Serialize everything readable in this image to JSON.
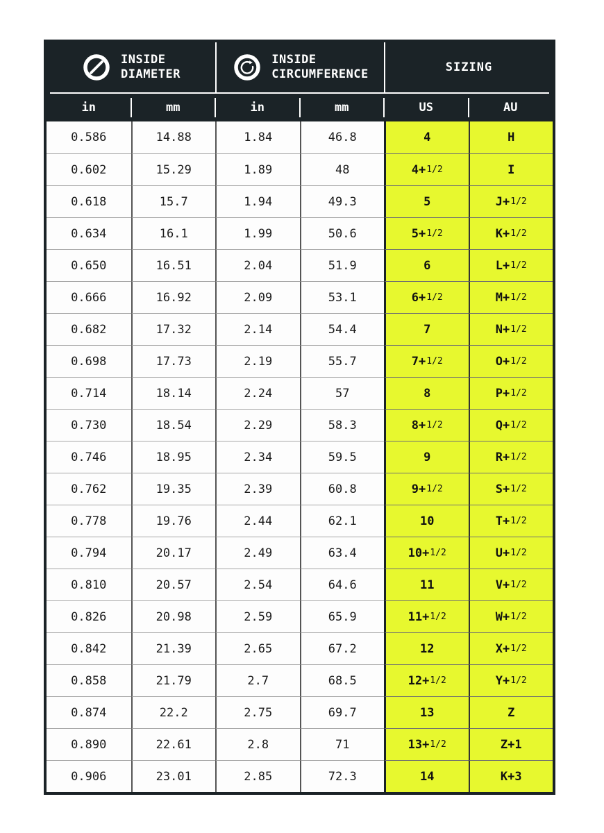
{
  "header": {
    "groups": [
      {
        "icon": "diameter-icon",
        "line1": "INSIDE",
        "line2": "DIAMETER"
      },
      {
        "icon": "circumference-icon",
        "line1": "INSIDE",
        "line2": "CIRCUMFERENCE"
      },
      {
        "label": "SIZING"
      }
    ],
    "units": [
      "in",
      "mm",
      "in",
      "mm",
      "US",
      "AU"
    ]
  },
  "chart_data": {
    "type": "table",
    "column_groups": [
      {
        "label": "INSIDE DIAMETER",
        "icon": "diameter-icon",
        "columns": [
          "in",
          "mm"
        ]
      },
      {
        "label": "INSIDE CIRCUMFERENCE",
        "icon": "circumference-icon",
        "columns": [
          "in",
          "mm"
        ]
      },
      {
        "label": "SIZING",
        "columns": [
          "US",
          "AU"
        ]
      }
    ],
    "rows": [
      [
        "0.586",
        "14.88",
        "1.84",
        "46.8",
        "4",
        "H"
      ],
      [
        "0.602",
        "15.29",
        "1.89",
        "48",
        "4+1/2",
        "I"
      ],
      [
        "0.618",
        "15.7",
        "1.94",
        "49.3",
        "5",
        "J+1/2"
      ],
      [
        "0.634",
        "16.1",
        "1.99",
        "50.6",
        "5+1/2",
        "K+1/2"
      ],
      [
        "0.650",
        "16.51",
        "2.04",
        "51.9",
        "6",
        "L+1/2"
      ],
      [
        "0.666",
        "16.92",
        "2.09",
        "53.1",
        "6+1/2",
        "M+1/2"
      ],
      [
        "0.682",
        "17.32",
        "2.14",
        "54.4",
        "7",
        "N+1/2"
      ],
      [
        "0.698",
        "17.73",
        "2.19",
        "55.7",
        "7+1/2",
        "O+1/2"
      ],
      [
        "0.714",
        "18.14",
        "2.24",
        "57",
        "8",
        "P+1/2"
      ],
      [
        "0.730",
        "18.54",
        "2.29",
        "58.3",
        "8+1/2",
        "Q+1/2"
      ],
      [
        "0.746",
        "18.95",
        "2.34",
        "59.5",
        "9",
        "R+1/2"
      ],
      [
        "0.762",
        "19.35",
        "2.39",
        "60.8",
        "9+1/2",
        "S+1/2"
      ],
      [
        "0.778",
        "19.76",
        "2.44",
        "62.1",
        "10",
        "T+1/2"
      ],
      [
        "0.794",
        "20.17",
        "2.49",
        "63.4",
        "10+1/2",
        "U+1/2"
      ],
      [
        "0.810",
        "20.57",
        "2.54",
        "64.6",
        "11",
        "V+1/2"
      ],
      [
        "0.826",
        "20.98",
        "2.59",
        "65.9",
        "11+1/2",
        "W+1/2"
      ],
      [
        "0.842",
        "21.39",
        "2.65",
        "67.2",
        "12",
        "X+1/2"
      ],
      [
        "0.858",
        "21.79",
        "2.7",
        "68.5",
        "12+1/2",
        "Y+1/2"
      ],
      [
        "0.874",
        "22.2",
        "2.75",
        "69.7",
        "13",
        "Z"
      ],
      [
        "0.890",
        "22.61",
        "2.8",
        "71",
        "13+1/2",
        "Z+1"
      ],
      [
        "0.906",
        "23.01",
        "2.85",
        "72.3",
        "14",
        "K+3"
      ]
    ]
  },
  "colors": {
    "header_bg": "#1b2327",
    "highlight_yellow": "#e7f82f",
    "cell_bg": "#fdfdfd",
    "grid_light": "#a6a6a6",
    "grid_dark": "#555555",
    "text_dark": "#1b1b1b"
  }
}
